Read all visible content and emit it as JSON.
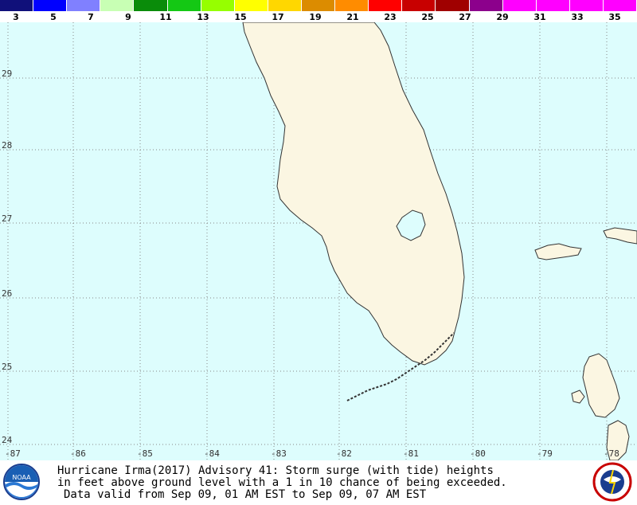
{
  "legend": {
    "unit": "ft",
    "colors": [
      "#10107a",
      "#0000ff",
      "#8080ff",
      "#c8ffb4",
      "#0a8c0a",
      "#14c814",
      "#96ff00",
      "#ffff00",
      "#ffd700",
      "#dc8c00",
      "#ff8c00",
      "#ff0000",
      "#c80000",
      "#a00000",
      "#8c008c",
      "#ff00ff",
      "#ff00ff",
      "#ff00ff",
      "#ff00ff"
    ],
    "labels": [
      "3",
      "5",
      "7",
      "9",
      "11",
      "13",
      "15",
      "17",
      "19",
      "21",
      "23",
      "25",
      "27",
      "29",
      "31",
      "33",
      "35"
    ]
  },
  "map": {
    "ocean_color": "#ddfdfd",
    "land_color": "#fbf6e2",
    "grid_color": "#888888",
    "latitudes": [
      "29",
      "28",
      "27",
      "26",
      "25",
      "24"
    ],
    "longitudes": [
      "-87",
      "-86",
      "-85",
      "-84",
      "-83",
      "-82",
      "-81",
      "-80",
      "-79",
      "-78"
    ]
  },
  "caption": {
    "line1": "Hurricane Irma(2017) Advisory 41: Storm surge (with tide) heights",
    "line2": "in feet above ground level with a 1 in 10 chance of being exceeded.",
    "line3": "Data valid from Sep 09, 01 AM EST to Sep 09, 07 AM EST"
  },
  "logos": {
    "noaa": "NOAA",
    "nws": "NATIONAL WEATHER SERVICE"
  }
}
